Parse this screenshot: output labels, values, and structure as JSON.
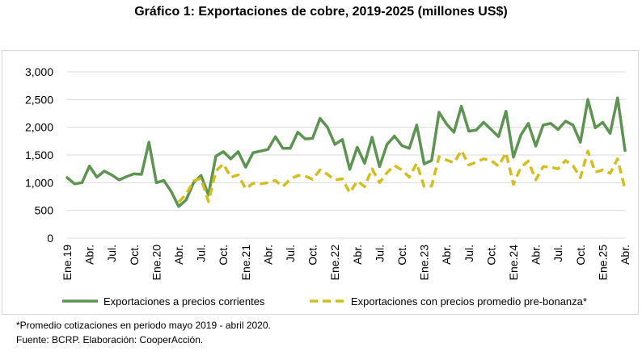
{
  "title": "Gráfico 1: Exportaciones de cobre, 2019-2025 (millones US$)",
  "notes": {
    "footnote": "*Promedio cotizaciones en periodo mayo 2019 - abril 2020.",
    "source": "Fuente: BCRP. Elaboración: CooperAcción."
  },
  "chart_data": {
    "type": "line",
    "title": "",
    "xlabel": "",
    "ylabel": "",
    "ylim": [
      0,
      3000
    ],
    "yticks": [
      "0",
      "500",
      "1,000",
      "1,500",
      "2,000",
      "2,500",
      "3,000"
    ],
    "ytick_values": [
      0,
      500,
      1000,
      1500,
      2000,
      2500,
      3000
    ],
    "grid": "horizontal",
    "legend": "bottom",
    "x_tick_labels": [
      {
        "index": 0,
        "label": "Ene.19"
      },
      {
        "index": 3,
        "label": "Abr."
      },
      {
        "index": 6,
        "label": "Jul."
      },
      {
        "index": 9,
        "label": "Oct."
      },
      {
        "index": 12,
        "label": "Ene.20"
      },
      {
        "index": 15,
        "label": "Abr."
      },
      {
        "index": 18,
        "label": "Jul."
      },
      {
        "index": 21,
        "label": "Oct."
      },
      {
        "index": 24,
        "label": "Ene.21"
      },
      {
        "index": 27,
        "label": "Abr."
      },
      {
        "index": 30,
        "label": "Jul."
      },
      {
        "index": 33,
        "label": "Oct."
      },
      {
        "index": 36,
        "label": "Ene.22"
      },
      {
        "index": 39,
        "label": "Abr."
      },
      {
        "index": 42,
        "label": "Jul."
      },
      {
        "index": 45,
        "label": "Oct."
      },
      {
        "index": 48,
        "label": "Ene.23"
      },
      {
        "index": 51,
        "label": "Abr."
      },
      {
        "index": 54,
        "label": "Jul."
      },
      {
        "index": 57,
        "label": "Oct."
      },
      {
        "index": 60,
        "label": "Ene.24"
      },
      {
        "index": 63,
        "label": "Abr."
      },
      {
        "index": 66,
        "label": "Jul."
      },
      {
        "index": 69,
        "label": "Oct."
      },
      {
        "index": 72,
        "label": "Ene.25"
      },
      {
        "index": 75,
        "label": "Abr."
      }
    ],
    "n_months": 76,
    "series": [
      {
        "name": "Exportaciones a precios corrientes",
        "color": "#5e9451",
        "style": "solid",
        "start_index": 0,
        "values": [
          1090,
          980,
          1000,
          1300,
          1100,
          1210,
          1140,
          1050,
          1110,
          1160,
          1150,
          1730,
          1000,
          1040,
          840,
          570,
          690,
          1000,
          1130,
          780,
          1480,
          1560,
          1430,
          1560,
          1280,
          1540,
          1570,
          1600,
          1830,
          1620,
          1620,
          1910,
          1790,
          1800,
          2160,
          2000,
          1690,
          1780,
          1240,
          1640,
          1350,
          1820,
          1290,
          1690,
          1840,
          1670,
          1620,
          2040,
          1340,
          1400,
          2270,
          2060,
          1910,
          2380,
          1930,
          1950,
          2090,
          1960,
          1830,
          2290,
          1460,
          1860,
          2070,
          1660,
          2040,
          2070,
          1960,
          2110,
          2040,
          1730,
          2500,
          1990,
          2090,
          1890,
          2530,
          1580
        ]
      },
      {
        "name": "Exportaciones con precios promedio pre-bonanza*",
        "color": "#d4be1f",
        "style": "dashed",
        "start_index": 15,
        "values": [
          650,
          790,
          1030,
          1080,
          660,
          1210,
          1340,
          1100,
          1140,
          890,
          990,
          980,
          1000,
          1040,
          930,
          1060,
          1130,
          1120,
          1060,
          1230,
          1150,
          1050,
          1070,
          820,
          1030,
          930,
          1250,
          1000,
          1180,
          1310,
          1230,
          1100,
          1350,
          930,
          940,
          1470,
          1410,
          1360,
          1580,
          1320,
          1370,
          1430,
          1400,
          1300,
          1540,
          970,
          1280,
          1390,
          1050,
          1290,
          1280,
          1250,
          1400,
          1310,
          1090,
          1570,
          1190,
          1230,
          1170,
          1430,
          880
        ]
      }
    ]
  }
}
